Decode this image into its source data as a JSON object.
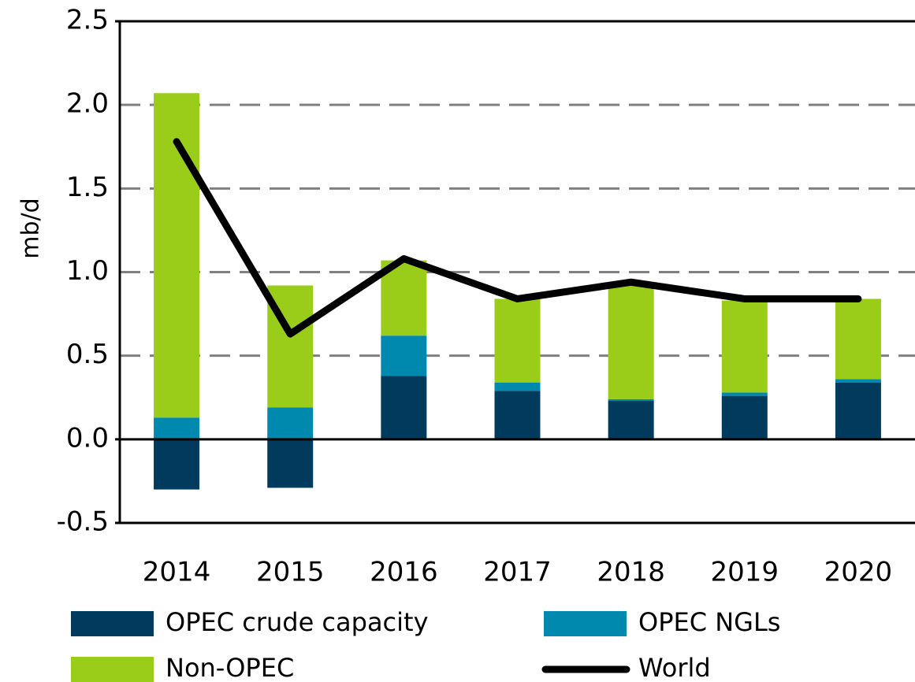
{
  "chart_data": {
    "type": "bar",
    "ylabel": "mb/d",
    "categories": [
      "2014",
      "2015",
      "2016",
      "2017",
      "2018",
      "2019",
      "2020"
    ],
    "series": [
      {
        "name": "OPEC crude capacity",
        "color": "#003a5d",
        "values": [
          -0.3,
          -0.29,
          0.38,
          0.29,
          0.23,
          0.26,
          0.34
        ]
      },
      {
        "name": "OPEC NGLs",
        "color": "#0089af",
        "values": [
          0.13,
          0.19,
          0.24,
          0.05,
          0.01,
          0.02,
          0.02
        ]
      },
      {
        "name": "Non-OPEC",
        "color": "#9acd19",
        "values": [
          1.94,
          0.73,
          0.45,
          0.5,
          0.68,
          0.55,
          0.48
        ]
      },
      {
        "name": "World",
        "color": "#000000",
        "type": "line",
        "values": [
          1.78,
          0.63,
          1.08,
          0.84,
          0.94,
          0.84,
          0.84
        ]
      }
    ],
    "stacked": true,
    "ylim": [
      -0.5,
      2.5
    ],
    "yticks": [
      -0.5,
      {
        "value": 0,
        "label": "0.0"
      },
      0.5,
      {
        "value": 1,
        "label": "1.0"
      },
      1.5,
      {
        "value": 2,
        "label": "2.0"
      },
      2.5
    ],
    "grid": true
  }
}
